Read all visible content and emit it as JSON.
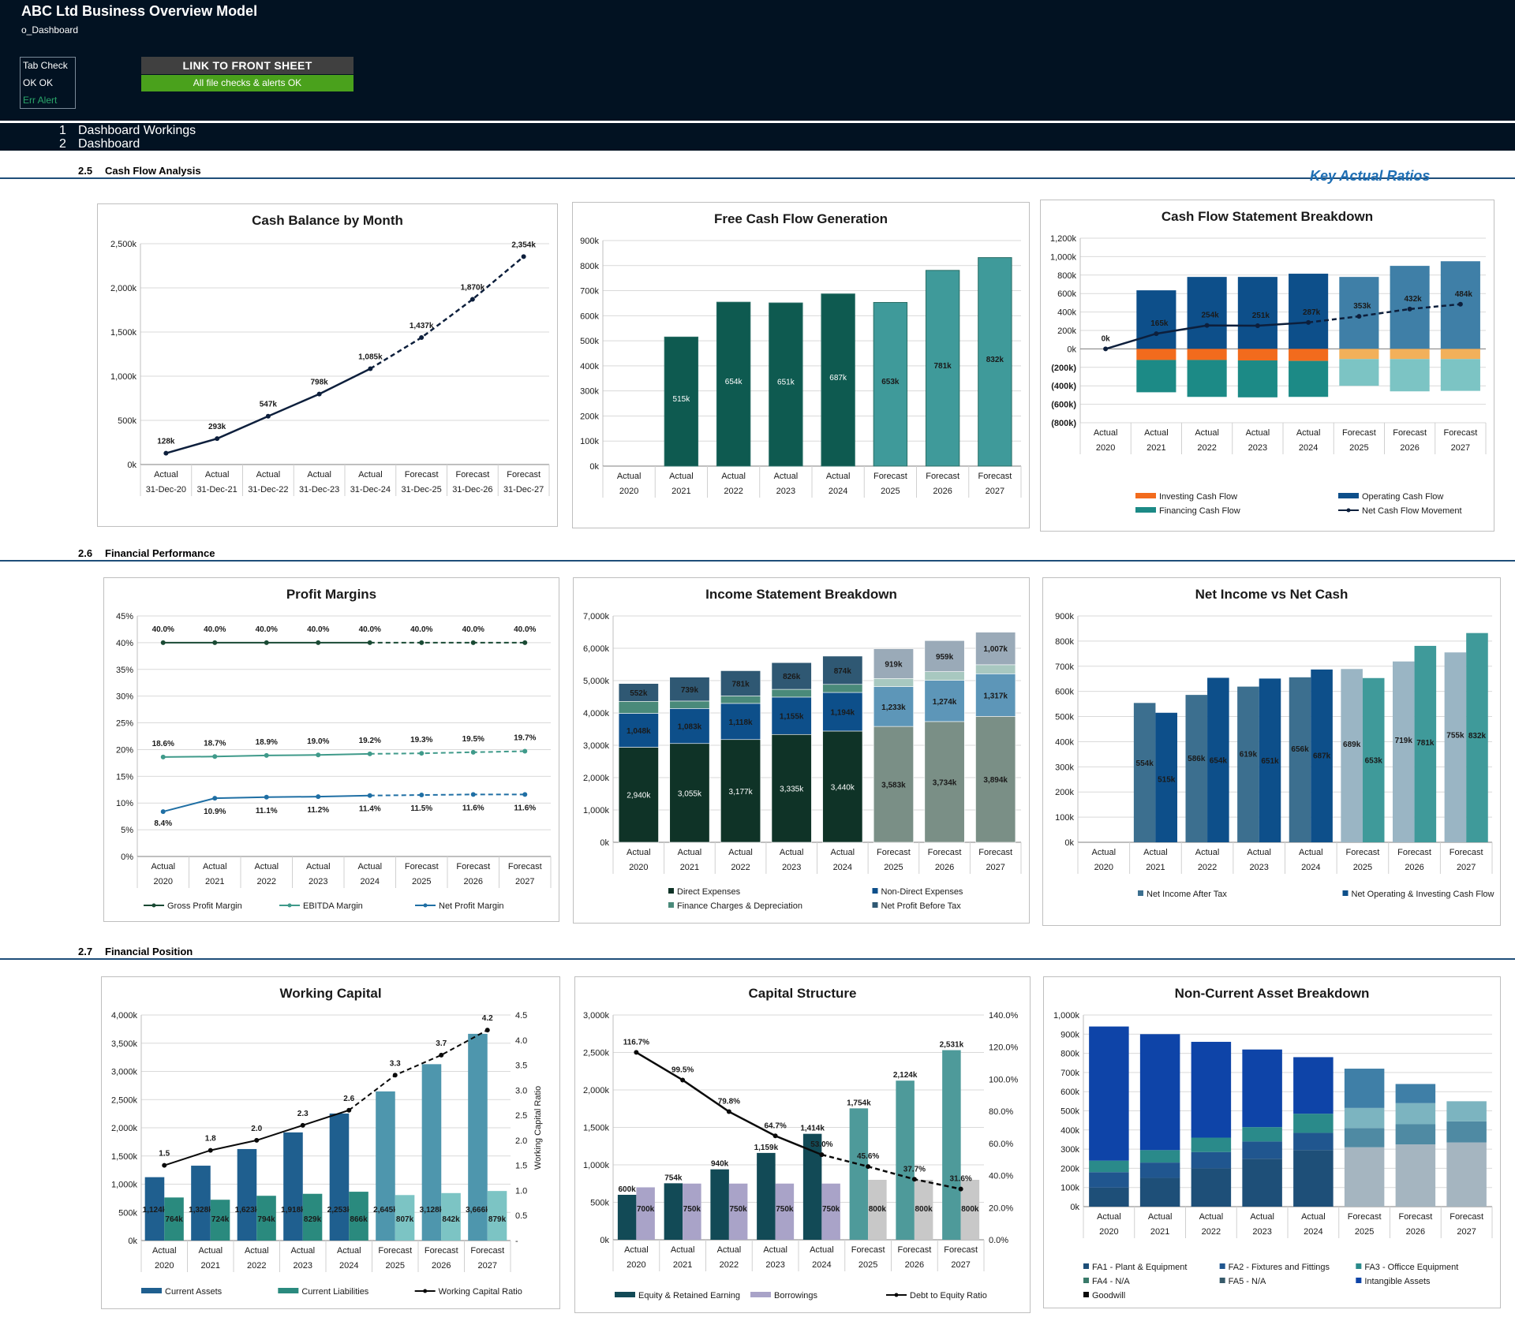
{
  "header": {
    "title": "ABC Ltd Business Overview Model",
    "sheet": "o_Dashboard",
    "tab_check": {
      "title": "Tab Check",
      "status": "OK  OK",
      "alert": "Err  Alert"
    },
    "link_button": "LINK TO FRONT SHEET",
    "checks_status": "All file checks & alerts OK"
  },
  "nav": [
    {
      "num": "1",
      "label": "Dashboard Workings"
    },
    {
      "num": "2",
      "label": "Dashboard"
    }
  ],
  "sections": [
    {
      "num": "2.5",
      "label": "Cash Flow Analysis"
    },
    {
      "num": "2.6",
      "label": "Financial Performance"
    },
    {
      "num": "2.7",
      "label": "Financial Position"
    }
  ],
  "key_ratios_label": "Key Actual Ratios",
  "colors": {
    "navy": "#021222",
    "line": "#0d1f3c",
    "teal_dark": "#0e5a50",
    "teal": "#3f9a9a",
    "blue": "#0d4f8a",
    "orange": "#f26b1d",
    "sage": "#7f9a8c",
    "green_dark": "#1a4a34",
    "link": "#4aa11c"
  },
  "chart_data": [
    {
      "id": "cash_balance",
      "type": "line",
      "title": "Cash Balance by Month",
      "categories": [
        [
          "Actual",
          "31-Dec-20"
        ],
        [
          "Actual",
          "31-Dec-21"
        ],
        [
          "Actual",
          "31-Dec-22"
        ],
        [
          "Actual",
          "31-Dec-23"
        ],
        [
          "Actual",
          "31-Dec-24"
        ],
        [
          "Forecast",
          "31-Dec-25"
        ],
        [
          "Forecast",
          "31-Dec-26"
        ],
        [
          "Forecast",
          "31-Dec-27"
        ]
      ],
      "yticks": [
        "0k",
        "500k",
        "1,000k",
        "1,500k",
        "2,000k",
        "2,500k"
      ],
      "ylim": [
        0,
        2500
      ],
      "series": [
        {
          "name": "Cash Balance",
          "values": [
            128,
            293,
            547,
            798,
            1085,
            1437,
            1870,
            2354
          ],
          "labels": [
            "128k",
            "293k",
            "547k",
            "798k",
            "1,085k",
            "1,437k",
            "1,870k",
            "2,354k"
          ]
        }
      ]
    },
    {
      "id": "fcf",
      "type": "bar",
      "title": "Free Cash Flow Generation",
      "categories": [
        [
          "Actual",
          "2020"
        ],
        [
          "Actual",
          "2021"
        ],
        [
          "Actual",
          "2022"
        ],
        [
          "Actual",
          "2023"
        ],
        [
          "Actual",
          "2024"
        ],
        [
          "Forecast",
          "2025"
        ],
        [
          "Forecast",
          "2026"
        ],
        [
          "Forecast",
          "2027"
        ]
      ],
      "yticks": [
        "0k",
        "100k",
        "200k",
        "300k",
        "400k",
        "500k",
        "600k",
        "700k",
        "800k",
        "900k"
      ],
      "ylim": [
        0,
        900
      ],
      "series": [
        {
          "name": "Free Cash Flow",
          "values": [
            0,
            515,
            654,
            651,
            687,
            653,
            781,
            832
          ],
          "labels": [
            "",
            "515k",
            "654k",
            "651k",
            "687k",
            "653k",
            "781k",
            "832k"
          ]
        }
      ]
    },
    {
      "id": "cfs",
      "type": "bar",
      "title": "Cash Flow Statement Breakdown",
      "categories": [
        [
          "Actual",
          "2020"
        ],
        [
          "Actual",
          "2021"
        ],
        [
          "Actual",
          "2022"
        ],
        [
          "Actual",
          "2023"
        ],
        [
          "Actual",
          "2024"
        ],
        [
          "Forecast",
          "2025"
        ],
        [
          "Forecast",
          "2026"
        ],
        [
          "Forecast",
          "2027"
        ]
      ],
      "yticks": [
        "(800k)",
        "(600k)",
        "(400k)",
        "(200k)",
        "0k",
        "200k",
        "400k",
        "600k",
        "800k",
        "1,000k",
        "1,200k"
      ],
      "ylim": [
        -800,
        1200
      ],
      "series": [
        {
          "name": "Investing Cash Flow",
          "values": [
            0,
            -120,
            -120,
            -125,
            -130,
            -110,
            -110,
            -110
          ]
        },
        {
          "name": "Operating Cash Flow",
          "values": [
            0,
            635,
            780,
            780,
            815,
            780,
            900,
            950
          ]
        },
        {
          "name": "Financing Cash Flow",
          "values": [
            0,
            -350,
            -400,
            -400,
            -390,
            -290,
            -350,
            -345
          ]
        },
        {
          "name": "Net Cash Flow Movement",
          "values": [
            0,
            165,
            254,
            251,
            287,
            353,
            432,
            484
          ],
          "labels": [
            "0k",
            "165k",
            "254k",
            "251k",
            "287k",
            "353k",
            "432k",
            "484k"
          ]
        }
      ],
      "legend": [
        "Investing Cash Flow",
        "Operating Cash Flow",
        "Financing Cash Flow",
        "Net Cash Flow Movement"
      ]
    },
    {
      "id": "margins",
      "type": "line",
      "title": "Profit Margins",
      "categories": [
        [
          "Actual",
          "2020"
        ],
        [
          "Actual",
          "2021"
        ],
        [
          "Actual",
          "2022"
        ],
        [
          "Actual",
          "2023"
        ],
        [
          "Actual",
          "2024"
        ],
        [
          "Forecast",
          "2025"
        ],
        [
          "Forecast",
          "2026"
        ],
        [
          "Forecast",
          "2027"
        ]
      ],
      "yticks": [
        "0%",
        "5%",
        "10%",
        "15%",
        "20%",
        "25%",
        "30%",
        "35%",
        "40%",
        "45%"
      ],
      "ylim": [
        0,
        45
      ],
      "series": [
        {
          "name": "Gross Profit Margin",
          "values": [
            40,
            40,
            40,
            40,
            40,
            40,
            40,
            40
          ],
          "labels": [
            "40.0%",
            "40.0%",
            "40.0%",
            "40.0%",
            "40.0%",
            "40.0%",
            "40.0%",
            "40.0%"
          ]
        },
        {
          "name": "EBITDA Margin",
          "values": [
            18.6,
            18.7,
            18.9,
            19.0,
            19.2,
            19.3,
            19.5,
            19.7
          ],
          "labels": [
            "18.6%",
            "18.7%",
            "18.9%",
            "19.0%",
            "19.2%",
            "19.3%",
            "19.5%",
            "19.7%"
          ]
        },
        {
          "name": "Net Profit Margin",
          "values": [
            8.4,
            10.9,
            11.1,
            11.2,
            11.4,
            11.5,
            11.6,
            11.6
          ],
          "labels": [
            "8.4%",
            "10.9%",
            "11.1%",
            "11.2%",
            "11.4%",
            "11.5%",
            "11.6%",
            "11.6%"
          ]
        }
      ],
      "legend": [
        "Gross Profit Margin",
        "EBITDA Margin",
        "Net Profit Margin"
      ]
    },
    {
      "id": "income",
      "type": "bar",
      "title": "Income Statement Breakdown",
      "categories": [
        [
          "Actual",
          "2020"
        ],
        [
          "Actual",
          "2021"
        ],
        [
          "Actual",
          "2022"
        ],
        [
          "Actual",
          "2023"
        ],
        [
          "Actual",
          "2024"
        ],
        [
          "Forecast",
          "2025"
        ],
        [
          "Forecast",
          "2026"
        ],
        [
          "Forecast",
          "2027"
        ]
      ],
      "yticks": [
        "0k",
        "1,000k",
        "2,000k",
        "3,000k",
        "4,000k",
        "5,000k",
        "6,000k",
        "7,000k"
      ],
      "ylim": [
        0,
        7000
      ],
      "series": [
        {
          "name": "Direct Expenses",
          "values": [
            2940,
            3055,
            3177,
            3335,
            3440,
            3583,
            3734,
            3894
          ],
          "labels": [
            "2,940k",
            "3,055k",
            "3,177k",
            "3,335k",
            "3,440k",
            "3,583k",
            "3,734k",
            "3,894k"
          ]
        },
        {
          "name": "Non-Direct Expenses",
          "values": [
            1048,
            1083,
            1118,
            1155,
            1194,
            1233,
            1274,
            1317
          ],
          "labels": [
            "1,048k",
            "1,083k",
            "1,118k",
            "1,155k",
            "1,194k",
            "1,233k",
            "1,274k",
            "1,317k"
          ]
        },
        {
          "name": "Finance Charges & Depreciation",
          "values": [
            370,
            230,
            230,
            240,
            250,
            250,
            270,
            280
          ]
        },
        {
          "name": "Net Profit Before Tax",
          "values": [
            552,
            739,
            781,
            826,
            874,
            919,
            959,
            1007
          ],
          "labels": [
            "552k",
            "739k",
            "781k",
            "826k",
            "874k",
            "919k",
            "959k",
            "1,007k"
          ]
        }
      ],
      "legend": [
        "Direct Expenses",
        "Non-Direct Expenses",
        "Finance Charges & Depreciation",
        "Net Profit Before Tax"
      ]
    },
    {
      "id": "netincome",
      "type": "bar",
      "title": "Net Income vs Net Cash",
      "categories": [
        [
          "Actual",
          "2020"
        ],
        [
          "Actual",
          "2021"
        ],
        [
          "Actual",
          "2022"
        ],
        [
          "Actual",
          "2023"
        ],
        [
          "Actual",
          "2024"
        ],
        [
          "Forecast",
          "2025"
        ],
        [
          "Forecast",
          "2026"
        ],
        [
          "Forecast",
          "2027"
        ]
      ],
      "yticks": [
        "0k",
        "100k",
        "200k",
        "300k",
        "400k",
        "500k",
        "600k",
        "700k",
        "800k",
        "900k"
      ],
      "ylim": [
        0,
        900
      ],
      "series": [
        {
          "name": "Net Income After Tax",
          "values": [
            0,
            554,
            586,
            619,
            656,
            689,
            719,
            755
          ],
          "labels": [
            "",
            "554k",
            "586k",
            "619k",
            "656k",
            "689k",
            "719k",
            "755k"
          ]
        },
        {
          "name": "Net Operating & Investing Cash Flow",
          "values": [
            0,
            515,
            654,
            651,
            687,
            653,
            781,
            832
          ],
          "labels": [
            "",
            "515k",
            "654k",
            "651k",
            "687k",
            "653k",
            "781k",
            "832k"
          ]
        }
      ],
      "legend": [
        "Net Income After Tax",
        "Net Operating & Investing Cash Flow"
      ]
    },
    {
      "id": "wc",
      "type": "bar",
      "title": "Working Capital",
      "categories": [
        [
          "Actual",
          "2020"
        ],
        [
          "Actual",
          "2021"
        ],
        [
          "Actual",
          "2022"
        ],
        [
          "Actual",
          "2023"
        ],
        [
          "Actual",
          "2024"
        ],
        [
          "Forecast",
          "2025"
        ],
        [
          "Forecast",
          "2026"
        ],
        [
          "Forecast",
          "2027"
        ]
      ],
      "yticks": [
        "0k",
        "500k",
        "1,000k",
        "1,500k",
        "2,000k",
        "2,500k",
        "3,000k",
        "3,500k",
        "4,000k"
      ],
      "ylim": [
        0,
        4000
      ],
      "y2ticks": [
        "-",
        "0.5",
        "1.0",
        "1.5",
        "2.0",
        "2.5",
        "3.0",
        "3.5",
        "4.0",
        "4.5"
      ],
      "y2lim": [
        0,
        4.5
      ],
      "y2label": "Working Capital Ratio",
      "series": [
        {
          "name": "Current Assets",
          "values": [
            1124,
            1328,
            1623,
            1918,
            2253,
            2645,
            3128,
            3666
          ],
          "labels": [
            "1,124k",
            "1,328k",
            "1,623k",
            "1,918k",
            "2,253k",
            "2,645k",
            "3,128k",
            "3,666k"
          ]
        },
        {
          "name": "Current Liabilities",
          "values": [
            764,
            724,
            794,
            829,
            866,
            807,
            842,
            879
          ],
          "labels": [
            "764k",
            "724k",
            "794k",
            "829k",
            "866k",
            "807k",
            "842k",
            "879k"
          ]
        },
        {
          "name": "Working Capital Ratio",
          "values": [
            1.5,
            1.8,
            2.0,
            2.3,
            2.6,
            3.3,
            3.7,
            4.2
          ],
          "labels": [
            "1.5",
            "1.8",
            "2.0",
            "2.3",
            "2.6",
            "3.3",
            "3.7",
            "4.2"
          ]
        }
      ],
      "legend": [
        "Current Assets",
        "Current Liabilities",
        "Working Capital Ratio"
      ]
    },
    {
      "id": "capital",
      "type": "bar",
      "title": "Capital Structure",
      "categories": [
        [
          "Actual",
          "2020"
        ],
        [
          "Actual",
          "2021"
        ],
        [
          "Actual",
          "2022"
        ],
        [
          "Actual",
          "2023"
        ],
        [
          "Actual",
          "2024"
        ],
        [
          "Forecast",
          "2025"
        ],
        [
          "Forecast",
          "2026"
        ],
        [
          "Forecast",
          "2027"
        ]
      ],
      "yticks": [
        "0k",
        "500k",
        "1,000k",
        "1,500k",
        "2,000k",
        "2,500k",
        "3,000k"
      ],
      "ylim": [
        0,
        3000
      ],
      "y2ticks": [
        "0.0%",
        "20.0%",
        "40.0%",
        "60.0%",
        "80.0%",
        "100.0%",
        "120.0%",
        "140.0%"
      ],
      "y2lim": [
        0,
        140
      ],
      "series": [
        {
          "name": "Equity & Retained Earning",
          "values": [
            600,
            754,
            940,
            1159,
            1414,
            1754,
            2124,
            2531
          ],
          "labels": [
            "600k",
            "754k",
            "940k",
            "1,159k",
            "1,414k",
            "1,754k",
            "2,124k",
            "2,531k"
          ]
        },
        {
          "name": "Borrowings",
          "values": [
            700,
            750,
            750,
            750,
            750,
            800,
            800,
            800
          ],
          "labels": [
            "700k",
            "750k",
            "750k",
            "750k",
            "750k",
            "800k",
            "800k",
            "800k"
          ]
        },
        {
          "name": "Debt to Equity Ratio",
          "values": [
            116.7,
            99.5,
            79.8,
            64.7,
            53.0,
            45.6,
            37.7,
            31.6
          ],
          "labels": [
            "116.7%",
            "99.5%",
            "79.8%",
            "64.7%",
            "53.0%",
            "45.6%",
            "37.7%",
            "31.6%"
          ]
        }
      ],
      "legend": [
        "Equity & Retained Earning",
        "Borrowings",
        "Debt to Equity Ratio"
      ]
    },
    {
      "id": "nca",
      "type": "bar",
      "title": "Non-Current Asset Breakdown",
      "categories": [
        [
          "Actual",
          "2020"
        ],
        [
          "Actual",
          "2021"
        ],
        [
          "Actual",
          "2022"
        ],
        [
          "Actual",
          "2023"
        ],
        [
          "Actual",
          "2024"
        ],
        [
          "Forecast",
          "2025"
        ],
        [
          "Forecast",
          "2026"
        ],
        [
          "Forecast",
          "2027"
        ]
      ],
      "yticks": [
        "0k",
        "100k",
        "200k",
        "300k",
        "400k",
        "500k",
        "600k",
        "700k",
        "800k",
        "900k",
        "1,000k"
      ],
      "ylim": [
        0,
        1000
      ],
      "series": [
        {
          "name": "FA1 - Plant & Equipment",
          "values": [
            100,
            150,
            200,
            250,
            295,
            310,
            325,
            335
          ]
        },
        {
          "name": "FA2 - Fixtures and Fittings",
          "values": [
            80,
            80,
            85,
            90,
            90,
            100,
            105,
            110
          ]
        },
        {
          "name": "FA3 - Officce Equipment",
          "values": [
            60,
            65,
            75,
            75,
            100,
            105,
            110,
            105
          ]
        },
        {
          "name": "FA4 - N/A",
          "values": [
            0,
            0,
            0,
            0,
            0,
            0,
            0,
            0
          ]
        },
        {
          "name": "FA5 - N/A",
          "values": [
            0,
            0,
            0,
            0,
            0,
            0,
            0,
            0
          ]
        },
        {
          "name": "Intangible Assets",
          "values": [
            700,
            605,
            500,
            405,
            295,
            205,
            100,
            0
          ]
        },
        {
          "name": "Goodwill",
          "values": [
            0,
            0,
            0,
            0,
            0,
            0,
            0,
            0
          ]
        }
      ],
      "legend": [
        "FA1 - Plant & Equipment",
        "FA2 - Fixtures and Fittings",
        "FA3 - Officce Equipment",
        "FA4 - N/A",
        "FA5 - N/A",
        "Intangible Assets",
        "Goodwill"
      ]
    }
  ]
}
